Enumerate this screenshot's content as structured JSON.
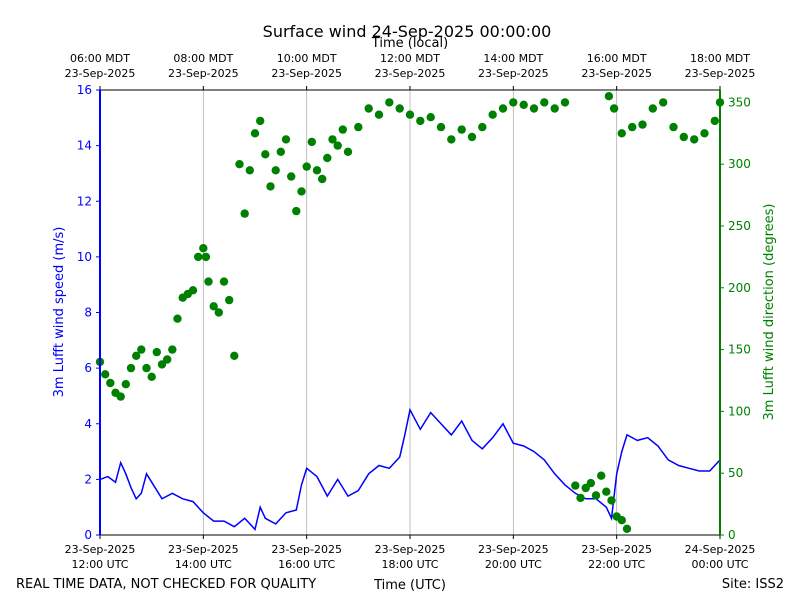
{
  "chart_data": {
    "type": "line+scatter",
    "title": "Surface wind 24-Sep-2025 00:00:00",
    "top_axis_label": "Time (local)",
    "xlabel": "Time (UTC)",
    "ylabel_left": "3m Lufft wind speed (m/s)",
    "ylabel_right": "3m Lufft wind direction (degrees)",
    "footer_left": "REAL TIME DATA, NOT CHECKED FOR QUALITY",
    "footer_right": "Site: ISS2",
    "xlim_hours_utc": [
      12,
      24
    ],
    "ylim_left": [
      0,
      16
    ],
    "ylim_right": [
      0,
      360
    ],
    "grid_x": true,
    "bottom_ticks": [
      {
        "hour": 12,
        "line1": "23-Sep-2025",
        "line2": "12:00 UTC"
      },
      {
        "hour": 14,
        "line1": "23-Sep-2025",
        "line2": "14:00 UTC"
      },
      {
        "hour": 16,
        "line1": "23-Sep-2025",
        "line2": "16:00 UTC"
      },
      {
        "hour": 18,
        "line1": "23-Sep-2025",
        "line2": "18:00 UTC"
      },
      {
        "hour": 20,
        "line1": "23-Sep-2025",
        "line2": "20:00 UTC"
      },
      {
        "hour": 22,
        "line1": "23-Sep-2025",
        "line2": "22:00 UTC"
      },
      {
        "hour": 24,
        "line1": "24-Sep-2025",
        "line2": "00:00 UTC"
      }
    ],
    "top_ticks": [
      {
        "hour": 12,
        "line1": "06:00 MDT",
        "line2": "23-Sep-2025"
      },
      {
        "hour": 14,
        "line1": "08:00 MDT",
        "line2": "23-Sep-2025"
      },
      {
        "hour": 16,
        "line1": "10:00 MDT",
        "line2": "23-Sep-2025"
      },
      {
        "hour": 18,
        "line1": "12:00 MDT",
        "line2": "23-Sep-2025"
      },
      {
        "hour": 20,
        "line1": "14:00 MDT",
        "line2": "23-Sep-2025"
      },
      {
        "hour": 22,
        "line1": "16:00 MDT",
        "line2": "23-Sep-2025"
      },
      {
        "hour": 24,
        "line1": "18:00 MDT",
        "line2": "23-Sep-2025"
      }
    ],
    "left_ticks": [
      0,
      2,
      4,
      6,
      8,
      10,
      12,
      14,
      16
    ],
    "right_ticks": [
      0,
      50,
      100,
      150,
      200,
      250,
      300,
      350
    ],
    "colors": {
      "speed": "#0000ff",
      "direction": "#008000",
      "grid": "#b0b0b0",
      "text": "#000000"
    },
    "series": [
      {
        "name": "wind speed",
        "axis": "left",
        "kind": "line",
        "points": [
          [
            12.0,
            2.0
          ],
          [
            12.15,
            2.1
          ],
          [
            12.3,
            1.9
          ],
          [
            12.4,
            2.6
          ],
          [
            12.5,
            2.2
          ],
          [
            12.6,
            1.7
          ],
          [
            12.7,
            1.3
          ],
          [
            12.8,
            1.5
          ],
          [
            12.9,
            2.2
          ],
          [
            13.0,
            1.9
          ],
          [
            13.2,
            1.3
          ],
          [
            13.4,
            1.5
          ],
          [
            13.6,
            1.3
          ],
          [
            13.8,
            1.2
          ],
          [
            14.0,
            0.8
          ],
          [
            14.2,
            0.5
          ],
          [
            14.4,
            0.5
          ],
          [
            14.6,
            0.3
          ],
          [
            14.8,
            0.6
          ],
          [
            15.0,
            0.2
          ],
          [
            15.1,
            1.0
          ],
          [
            15.2,
            0.6
          ],
          [
            15.4,
            0.4
          ],
          [
            15.6,
            0.8
          ],
          [
            15.8,
            0.9
          ],
          [
            15.9,
            1.8
          ],
          [
            16.0,
            2.4
          ],
          [
            16.2,
            2.1
          ],
          [
            16.4,
            1.4
          ],
          [
            16.6,
            2.0
          ],
          [
            16.8,
            1.4
          ],
          [
            17.0,
            1.6
          ],
          [
            17.2,
            2.2
          ],
          [
            17.4,
            2.5
          ],
          [
            17.6,
            2.4
          ],
          [
            17.8,
            2.8
          ],
          [
            17.9,
            3.6
          ],
          [
            18.0,
            4.5
          ],
          [
            18.2,
            3.8
          ],
          [
            18.4,
            4.4
          ],
          [
            18.6,
            4.0
          ],
          [
            18.8,
            3.6
          ],
          [
            19.0,
            4.1
          ],
          [
            19.2,
            3.4
          ],
          [
            19.4,
            3.1
          ],
          [
            19.6,
            3.5
          ],
          [
            19.8,
            4.0
          ],
          [
            20.0,
            3.3
          ],
          [
            20.2,
            3.2
          ],
          [
            20.4,
            3.0
          ],
          [
            20.6,
            2.7
          ],
          [
            20.8,
            2.2
          ],
          [
            21.0,
            1.8
          ],
          [
            21.2,
            1.5
          ],
          [
            21.4,
            1.3
          ],
          [
            21.6,
            1.3
          ],
          [
            21.8,
            1.0
          ],
          [
            21.9,
            0.6
          ],
          [
            22.0,
            2.2
          ],
          [
            22.1,
            3.0
          ],
          [
            22.2,
            3.6
          ],
          [
            22.4,
            3.4
          ],
          [
            22.6,
            3.5
          ],
          [
            22.8,
            3.2
          ],
          [
            23.0,
            2.7
          ],
          [
            23.2,
            2.5
          ],
          [
            23.4,
            2.4
          ],
          [
            23.6,
            2.3
          ],
          [
            23.8,
            2.3
          ],
          [
            24.0,
            2.7
          ]
        ]
      },
      {
        "name": "wind direction",
        "axis": "right",
        "kind": "scatter",
        "points": [
          [
            12.0,
            140
          ],
          [
            12.1,
            130
          ],
          [
            12.2,
            123
          ],
          [
            12.3,
            115
          ],
          [
            12.4,
            112
          ],
          [
            12.5,
            122
          ],
          [
            12.6,
            135
          ],
          [
            12.7,
            145
          ],
          [
            12.8,
            150
          ],
          [
            12.9,
            135
          ],
          [
            13.0,
            128
          ],
          [
            13.1,
            148
          ],
          [
            13.2,
            138
          ],
          [
            13.3,
            142
          ],
          [
            13.4,
            150
          ],
          [
            13.5,
            175
          ],
          [
            13.6,
            192
          ],
          [
            13.7,
            195
          ],
          [
            13.8,
            198
          ],
          [
            13.9,
            225
          ],
          [
            14.0,
            232
          ],
          [
            14.05,
            225
          ],
          [
            14.1,
            205
          ],
          [
            14.2,
            185
          ],
          [
            14.3,
            180
          ],
          [
            14.4,
            205
          ],
          [
            14.5,
            190
          ],
          [
            14.6,
            145
          ],
          [
            14.7,
            300
          ],
          [
            14.8,
            260
          ],
          [
            14.9,
            295
          ],
          [
            15.0,
            325
          ],
          [
            15.1,
            335
          ],
          [
            15.2,
            308
          ],
          [
            15.3,
            282
          ],
          [
            15.4,
            295
          ],
          [
            15.5,
            310
          ],
          [
            15.6,
            320
          ],
          [
            15.7,
            290
          ],
          [
            15.8,
            262
          ],
          [
            15.9,
            278
          ],
          [
            16.0,
            298
          ],
          [
            16.1,
            318
          ],
          [
            16.2,
            295
          ],
          [
            16.3,
            288
          ],
          [
            16.4,
            305
          ],
          [
            16.5,
            320
          ],
          [
            16.6,
            315
          ],
          [
            16.7,
            328
          ],
          [
            16.8,
            310
          ],
          [
            17.0,
            330
          ],
          [
            17.2,
            345
          ],
          [
            17.4,
            340
          ],
          [
            17.6,
            350
          ],
          [
            17.8,
            345
          ],
          [
            18.0,
            340
          ],
          [
            18.2,
            335
          ],
          [
            18.4,
            338
          ],
          [
            18.6,
            330
          ],
          [
            18.8,
            320
          ],
          [
            19.0,
            328
          ],
          [
            19.2,
            322
          ],
          [
            19.4,
            330
          ],
          [
            19.6,
            340
          ],
          [
            19.8,
            345
          ],
          [
            20.0,
            350
          ],
          [
            20.2,
            348
          ],
          [
            20.4,
            345
          ],
          [
            20.6,
            350
          ],
          [
            20.8,
            345
          ],
          [
            21.0,
            350
          ],
          [
            21.2,
            40
          ],
          [
            21.3,
            30
          ],
          [
            21.4,
            38
          ],
          [
            21.5,
            42
          ],
          [
            21.6,
            32
          ],
          [
            21.7,
            48
          ],
          [
            21.8,
            35
          ],
          [
            21.9,
            28
          ],
          [
            22.0,
            15
          ],
          [
            22.1,
            12
          ],
          [
            22.2,
            5
          ],
          [
            21.85,
            355
          ],
          [
            21.95,
            345
          ],
          [
            22.1,
            325
          ],
          [
            22.3,
            330
          ],
          [
            22.5,
            332
          ],
          [
            22.7,
            345
          ],
          [
            22.9,
            350
          ],
          [
            23.1,
            330
          ],
          [
            23.3,
            322
          ],
          [
            23.5,
            320
          ],
          [
            23.7,
            325
          ],
          [
            23.9,
            335
          ],
          [
            24.0,
            350
          ]
        ]
      }
    ]
  }
}
